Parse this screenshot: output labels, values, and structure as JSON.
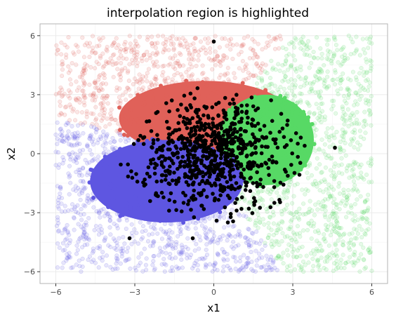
{
  "chart_data": {
    "type": "scatter",
    "title": "interpolation region is highlighted",
    "xlabel": "x1",
    "ylabel": "x2",
    "xlim": [
      -6.6,
      6.6
    ],
    "ylim": [
      -6.6,
      6.6
    ],
    "x_ticks": [
      -6,
      -3,
      0,
      3,
      6
    ],
    "y_ticks": [
      -6,
      -3,
      0,
      3,
      6
    ],
    "x_tick_labels": [
      "−6",
      "−3",
      "0",
      "3",
      "6"
    ],
    "y_tick_labels": [
      "−6",
      "−3",
      "0",
      "3",
      "6"
    ],
    "grid": true,
    "legend": "none",
    "theme": "light",
    "background_domain": [
      -6,
      6
    ],
    "background_alpha": 0.15,
    "highlight_center": [
      0,
      0
    ],
    "highlight_radius": 3.4,
    "classes": [
      {
        "color": "#e06159",
        "center": [
          -1.0,
          2.0
        ]
      },
      {
        "color": "#5e56e1",
        "center": [
          -2.0,
          -1.2
        ]
      },
      {
        "color": "#57d965",
        "center": [
          1.5,
          0.6
        ]
      }
    ],
    "highlight_regions": [
      {
        "class": 0,
        "center": [
          -0.3,
          1.8
        ],
        "rx": 3.3,
        "ry": 1.9
      },
      {
        "class": 2,
        "center": [
          2.0,
          0.7
        ],
        "rx": 1.8,
        "ry": 2.3
      },
      {
        "class": 1,
        "center": [
          -1.8,
          -1.4
        ],
        "rx": 2.9,
        "ry": 2.1
      }
    ],
    "black_points": {
      "count": 800,
      "center": [
        0.0,
        0.0
      ],
      "spread": [
        1.4,
        1.4
      ],
      "outliers": [
        [
          0.0,
          5.7
        ],
        [
          -3.2,
          -4.3
        ],
        [
          -0.8,
          -4.3
        ],
        [
          4.6,
          0.3
        ],
        [
          2.3,
          -2.5
        ]
      ]
    }
  }
}
